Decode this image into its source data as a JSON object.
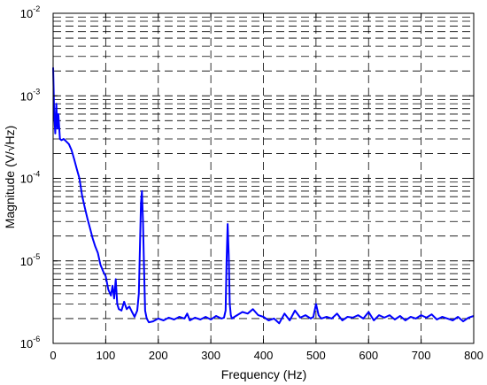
{
  "chart_data": {
    "type": "line",
    "title": "",
    "xlabel": "Frequency (Hz)",
    "ylabel": "Magnitude (V/√Hz)",
    "xlim": [
      0,
      800
    ],
    "ylim": [
      1e-06,
      0.01
    ],
    "yscale": "log",
    "grid": "major and minor, dashed",
    "x_tick_labels": [
      "0",
      "100",
      "200",
      "300",
      "400",
      "500",
      "600",
      "700",
      "800"
    ],
    "y_tick_labels": [
      {
        "base": "10",
        "exp": "-6"
      },
      {
        "base": "10",
        "exp": "-5"
      },
      {
        "base": "10",
        "exp": "-4"
      },
      {
        "base": "10",
        "exp": "-3"
      },
      {
        "base": "10",
        "exp": "-2"
      }
    ],
    "line_color": "#0000ff",
    "series": [
      {
        "x": [
          0,
          2,
          4,
          6,
          8,
          10,
          13,
          16,
          20,
          25,
          30,
          35,
          40,
          45,
          50,
          55,
          60,
          65,
          70,
          75,
          80,
          85,
          90,
          95,
          100,
          105,
          110,
          113,
          116,
          119,
          122,
          125,
          130,
          135,
          140,
          145,
          150,
          155,
          160,
          163,
          165,
          167,
          169,
          171,
          173,
          175,
          178,
          182,
          190,
          200,
          210,
          220,
          230,
          240,
          250,
          255,
          260,
          270,
          280,
          290,
          300,
          310,
          320,
          325,
          328,
          330,
          332,
          334,
          336,
          338,
          340,
          345,
          350,
          360,
          370,
          380,
          390,
          400,
          410,
          420,
          430,
          440,
          450,
          460,
          470,
          480,
          490,
          495,
          500,
          505,
          510,
          520,
          530,
          540,
          550,
          560,
          570,
          580,
          590,
          600,
          610,
          620,
          630,
          640,
          650,
          660,
          670,
          680,
          690,
          700,
          710,
          720,
          730,
          740,
          750,
          760,
          770,
          780,
          790,
          800
        ],
        "y": [
          0.0022,
          0.0006,
          0.00035,
          0.0008,
          0.0004,
          0.0006,
          0.0003,
          0.00029,
          0.0003,
          0.00028,
          0.00026,
          0.00022,
          0.00017,
          0.00013,
          0.0001,
          6.2e-05,
          4.5e-05,
          3.3e-05,
          2.5e-05,
          1.9e-05,
          1.5e-05,
          1.25e-05,
          9e-06,
          7.5e-06,
          6.5e-06,
          4.5e-06,
          3.8e-06,
          5e-06,
          3.5e-06,
          6e-06,
          3e-06,
          2.6e-06,
          2.5e-06,
          3.2e-06,
          2.6e-06,
          2.8e-06,
          2.4e-06,
          2.1e-06,
          2.5e-06,
          4e-06,
          1.4e-05,
          5e-05,
          7e-05,
          3e-05,
          8e-06,
          2.5e-06,
          2e-06,
          1.8e-06,
          1.85e-06,
          2e-06,
          1.9e-06,
          2.05e-06,
          1.95e-06,
          2.1e-06,
          2e-06,
          2.3e-06,
          1.9e-06,
          2.05e-06,
          1.95e-06,
          2.1e-06,
          1.95e-06,
          2.15e-06,
          2e-06,
          2.05e-06,
          2.5e-06,
          1e-05,
          2.8e-05,
          1.2e-05,
          3e-06,
          2.2e-06,
          2e-06,
          2.1e-06,
          2.2e-06,
          2.4e-06,
          2.3e-06,
          2.6e-06,
          2.2e-06,
          2.1e-06,
          1.9e-06,
          2e-06,
          1.75e-06,
          2.3e-06,
          1.9e-06,
          2.5e-06,
          2.05e-06,
          2.2e-06,
          2e-06,
          2.1e-06,
          3e-06,
          2.2e-06,
          2e-06,
          2.1e-06,
          2e-06,
          2.3e-06,
          1.9e-06,
          2.1e-06,
          2.05e-06,
          2.2e-06,
          2e-06,
          2.4e-06,
          1.9e-06,
          2.2e-06,
          2.05e-06,
          2.2e-06,
          1.95e-06,
          2.15e-06,
          1.9e-06,
          2.1e-06,
          2e-06,
          2.2e-06,
          2.05e-06,
          2.25e-06,
          1.95e-06,
          2.1e-06,
          2e-06,
          1.9e-06,
          2.1e-06,
          1.85e-06,
          2.05e-06,
          2.15e-06
        ]
      }
    ]
  }
}
